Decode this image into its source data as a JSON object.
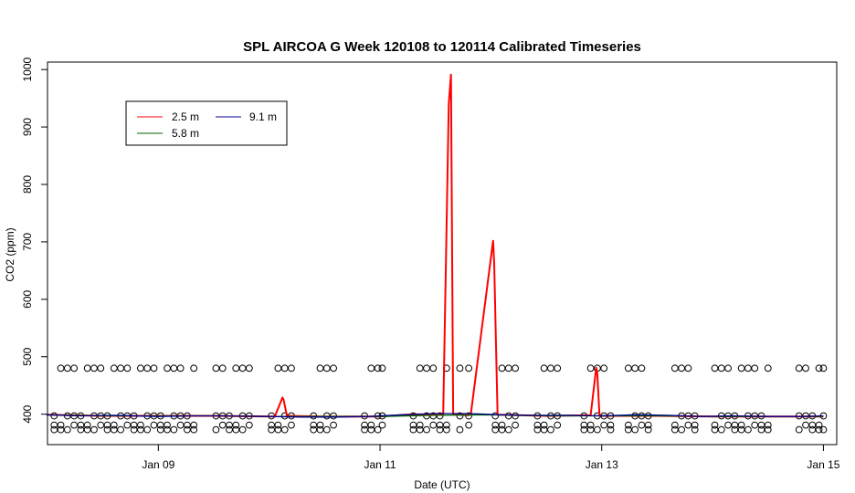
{
  "chart_data": {
    "type": "line",
    "title": "SPL AIRCOA G  Week 120108 to 120114  Calibrated Timeseries",
    "xlabel": "Date (UTC)",
    "ylabel": "CO2 (ppm)",
    "xlim": [
      8.0,
      15.12
    ],
    "ylim": [
      347,
      1013
    ],
    "x_ticks": [
      {
        "value": 9,
        "label": "Jan 09"
      },
      {
        "value": 11,
        "label": "Jan 11"
      },
      {
        "value": 13,
        "label": "Jan 13"
      },
      {
        "value": 15,
        "label": "Jan 15"
      }
    ],
    "y_ticks": [
      400,
      500,
      600,
      700,
      800,
      900,
      1000
    ],
    "legend": {
      "position": "top-left",
      "entries": [
        {
          "label": "2.5 m",
          "color": "#ff0000"
        },
        {
          "label": "9.1 m",
          "color": "#00008b"
        },
        {
          "label": "5.8 m",
          "color": "#006400"
        }
      ]
    },
    "series": [
      {
        "name": "2.5 m",
        "color": "#ff0000",
        "x": [
          7.99,
          8.5,
          9.0,
          9.5,
          10.05,
          10.12,
          10.13,
          10.16,
          10.5,
          11.0,
          11.3,
          11.55,
          11.57,
          11.62,
          11.64,
          11.66,
          11.8,
          11.82,
          12.02,
          12.03,
          12.06,
          12.5,
          12.85,
          12.9,
          12.95,
          12.96,
          12.98,
          13.0,
          13.5,
          14.0,
          14.5,
          15.0
        ],
        "y": [
          399,
          397,
          397,
          397,
          396,
          429,
          425,
          397,
          396,
          396,
          400,
          399,
          400,
          941,
          991,
          400,
          398,
          402,
          702,
          663,
          399,
          397,
          398,
          398,
          481,
          470,
          398,
          397,
          397,
          396,
          396,
          396
        ]
      },
      {
        "name": "5.8 m",
        "color": "#006400",
        "x": [
          7.99,
          8.5,
          9.0,
          9.5,
          10.0,
          10.5,
          11.0,
          11.5,
          12.0,
          12.5,
          13.0,
          13.5,
          14.0,
          14.5,
          15.0
        ],
        "y": [
          399,
          397,
          397,
          397,
          396,
          396,
          396,
          398,
          399,
          397,
          397,
          397,
          396,
          396,
          396
        ]
      },
      {
        "name": "9.1 m",
        "color": "#00008b",
        "x": [
          7.99,
          8.3,
          8.6,
          9.0,
          9.3,
          9.6,
          10.0,
          10.3,
          10.6,
          10.9,
          11.2,
          11.5,
          11.8,
          12.1,
          12.4,
          12.7,
          13.0,
          13.3,
          13.6,
          13.9,
          14.2,
          14.5,
          14.8,
          15.0
        ],
        "y": [
          399,
          397,
          398,
          396,
          397,
          397,
          396,
          395,
          395,
          396,
          399,
          401,
          401,
          399,
          398,
          398,
          397,
          399,
          398,
          396,
          397,
          396,
          396,
          397
        ]
      },
      {
        "name": "calibration markers",
        "marker": "o",
        "levels": [
          373,
          381,
          397,
          480
        ],
        "x": [
          8.06,
          8.12,
          8.18,
          8.24,
          8.3,
          8.36,
          8.42,
          8.48,
          8.54,
          8.6,
          8.66,
          8.72,
          8.78,
          8.84,
          8.9,
          8.96,
          9.02,
          9.08,
          9.14,
          9.2,
          9.26,
          9.32,
          9.52,
          9.58,
          9.64,
          9.7,
          9.76,
          9.82,
          10.02,
          10.08,
          10.14,
          10.2,
          10.4,
          10.46,
          10.52,
          10.58,
          10.86,
          10.92,
          10.98,
          11.02,
          11.3,
          11.36,
          11.42,
          11.48,
          11.54,
          11.6,
          11.72,
          11.8,
          12.04,
          12.1,
          12.16,
          12.22,
          12.42,
          12.48,
          12.54,
          12.6,
          12.84,
          12.9,
          12.96,
          13.02,
          13.08,
          13.24,
          13.3,
          13.36,
          13.42,
          13.66,
          13.72,
          13.78,
          13.84,
          14.02,
          14.08,
          14.14,
          14.2,
          14.26,
          14.32,
          14.38,
          14.44,
          14.5,
          14.78,
          14.84,
          14.9,
          14.96,
          15.0
        ]
      }
    ]
  }
}
